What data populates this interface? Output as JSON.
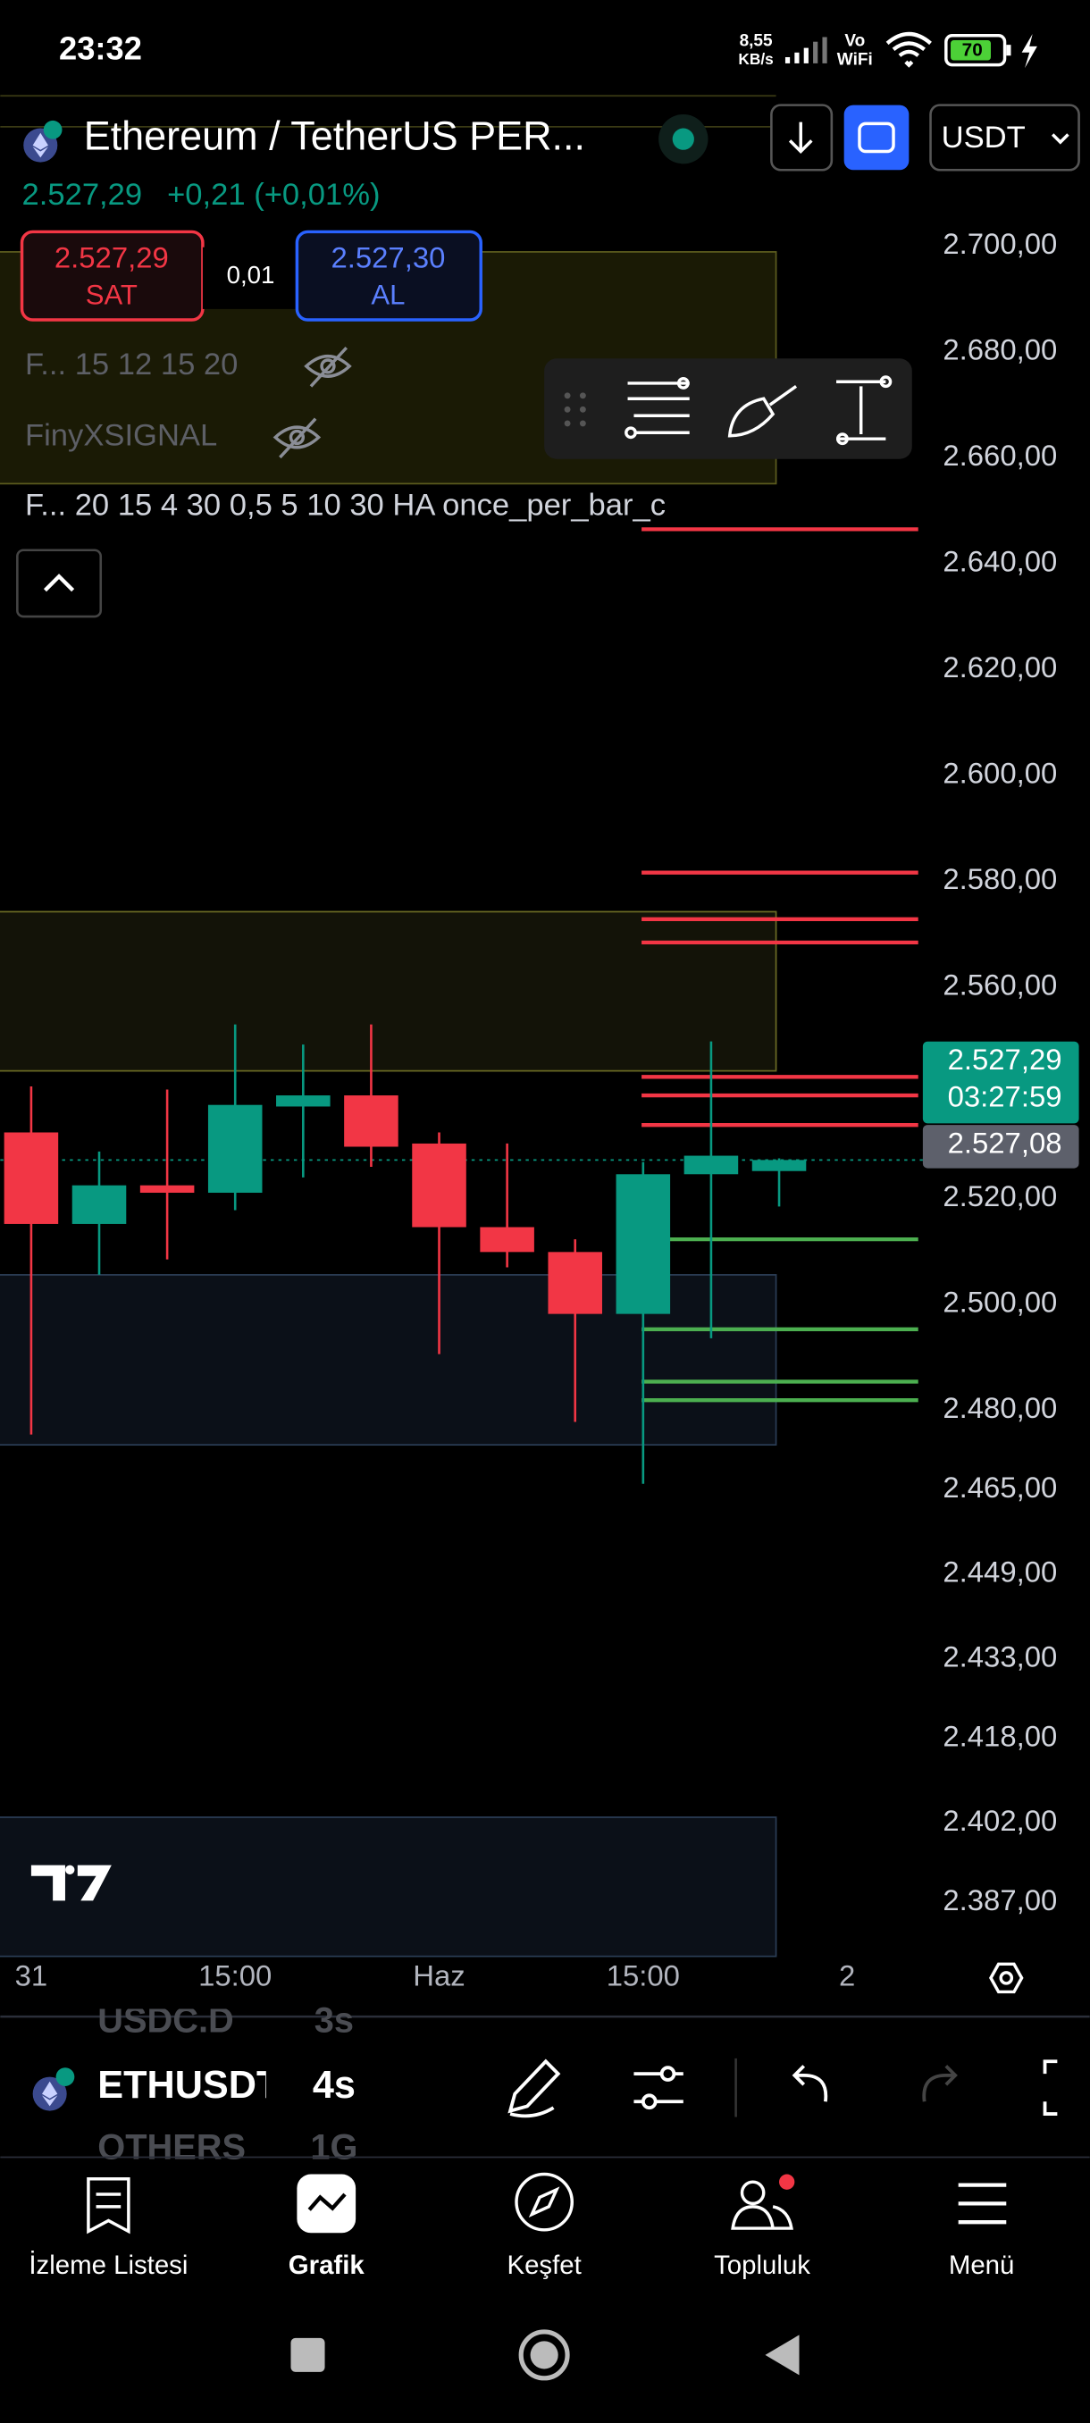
{
  "status_bar": {
    "time": "23:32",
    "speed": "8,55",
    "speed_unit": "KB/s",
    "vo": "Vo",
    "wifi": "WiFi",
    "battery": "70"
  },
  "header": {
    "symbol": "Ethereum / TetherUS PER...",
    "price": "2.527,29",
    "change": "+0,21 (+0,01%)",
    "currency": "USDT"
  },
  "trade": {
    "sell_price": "2.527,29",
    "sell_label": "SAT",
    "spread": "0,01",
    "buy_price": "2.527,30",
    "buy_label": "AL"
  },
  "indicators": [
    "F... 15 12 15 20",
    "FinyXSIGNAL",
    "F...  20 15 4 30 0,5 5 10 30 HA once_per_bar_c"
  ],
  "chart_data": {
    "type": "candlestick",
    "categories": [
      "31",
      null,
      null,
      "15:00",
      null,
      null,
      "Haz",
      null,
      null,
      "15:00",
      null,
      null,
      "2"
    ],
    "open": [
      2532.5,
      2515.2,
      2522.5,
      2521.1,
      2537.4,
      2539.5,
      2530.4,
      2514.6,
      2509.9,
      2498.2,
      2524.6,
      2525.2,
      null
    ],
    "high": [
      2541.2,
      2528.9,
      2540.6,
      2552.9,
      2549.1,
      2552.9,
      2532.5,
      2530.4,
      2512.3,
      2526.9,
      2549.7,
      2527.6,
      null
    ],
    "low": [
      2475.4,
      2505.6,
      2508.5,
      2517.8,
      2524.0,
      2526.0,
      2490.6,
      2507.0,
      2477.8,
      2466.1,
      2493.6,
      2518.5,
      null
    ],
    "close": [
      2515.2,
      2522.5,
      2521.1,
      2537.7,
      2539.5,
      2529.8,
      2514.6,
      2509.9,
      2498.2,
      2524.6,
      2528.1,
      2527.29,
      null
    ],
    "up_color": "#089981",
    "down_color": "#f23645",
    "levels": [
      {
        "color": "#f23645",
        "values": [
          2646.5,
          2581.6,
          2572.8,
          2568.4,
          2543.0,
          2539.5,
          2533.9
        ]
      },
      {
        "color": "#4caf50",
        "values": [
          2512.3,
          2495.3,
          2485.4,
          2481.9
        ]
      }
    ],
    "ylim": [
      2380,
      2729
    ],
    "yticks": [
      {
        "value": 2700,
        "label": "2.700,00"
      },
      {
        "value": 2680,
        "label": "2.680,00"
      },
      {
        "value": 2660,
        "label": "2.660,00"
      },
      {
        "value": 2640,
        "label": "2.640,00"
      },
      {
        "value": 2620,
        "label": "2.620,00"
      },
      {
        "value": 2600,
        "label": "2.600,00"
      },
      {
        "value": 2580,
        "label": "2.580,00"
      },
      {
        "value": 2560,
        "label": "2.560,00"
      },
      {
        "value": 2520,
        "label": "2.520,00"
      },
      {
        "value": 2500,
        "label": "2.500,00"
      },
      {
        "value": 2480,
        "label": "2.480,00"
      },
      {
        "value": 2465,
        "label": "2.465,00"
      },
      {
        "value": 2449,
        "label": "2.449,00"
      },
      {
        "value": 2433,
        "label": "2.433,00"
      },
      {
        "value": 2418,
        "label": "2.418,00"
      },
      {
        "value": 2402,
        "label": "2.402,00"
      },
      {
        "value": 2387,
        "label": "2.387,00"
      }
    ]
  },
  "price_labels": {
    "last": "2.527,29",
    "countdown": "03:27:59",
    "line": "2.527,08"
  },
  "toolbar": {
    "prev_symbol": "USDC.D",
    "prev_interval": "3s",
    "symbol": "ETHUSDT",
    "interval": "4s",
    "next_symbol": "OTHERS",
    "next_interval": "1G"
  },
  "nav": [
    "İzleme Listesi",
    "Grafik",
    "Keşfet",
    "Topluluk",
    "Menü"
  ]
}
